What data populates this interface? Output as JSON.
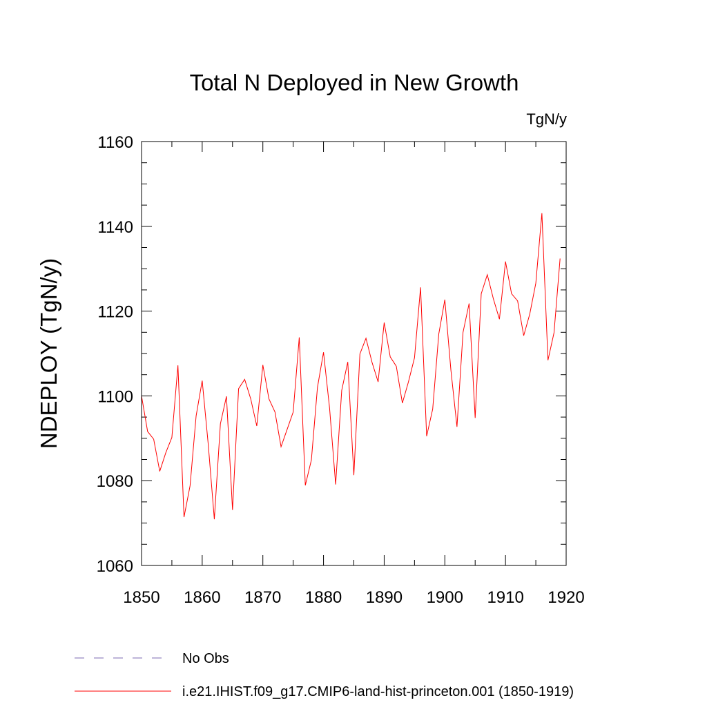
{
  "chart_data": {
    "type": "line",
    "title": "Total N Deployed in New Growth",
    "units": "TgN/y",
    "ylabel": "NDEPLOY  (TgN/y)",
    "xlabel": "",
    "xlim": [
      1850,
      1920
    ],
    "ylim": [
      1060,
      1160
    ],
    "x_ticks": [
      "1850",
      "1860",
      "1870",
      "1880",
      "1890",
      "1900",
      "1910",
      "1920"
    ],
    "y_ticks": [
      "1060",
      "1080",
      "1100",
      "1120",
      "1140",
      "1160"
    ],
    "grid": false,
    "legend_position": "bottom-left",
    "series": [
      {
        "name": "No Obs",
        "color": "#7b68b0",
        "style": "dashed",
        "x": [],
        "values": []
      },
      {
        "name": "i.e21.IHIST.f09_g17.CMIP6-land-hist-princeton.001 (1850-1919)",
        "color": "#ff0000",
        "style": "solid",
        "x": [
          1850,
          1851,
          1852,
          1853,
          1854,
          1855,
          1856,
          1857,
          1858,
          1859,
          1860,
          1861,
          1862,
          1863,
          1864,
          1865,
          1866,
          1867,
          1868,
          1869,
          1870,
          1871,
          1872,
          1873,
          1874,
          1875,
          1876,
          1877,
          1878,
          1879,
          1880,
          1881,
          1882,
          1883,
          1884,
          1885,
          1886,
          1887,
          1888,
          1889,
          1890,
          1891,
          1892,
          1893,
          1894,
          1895,
          1896,
          1897,
          1898,
          1899,
          1900,
          1901,
          1902,
          1903,
          1904,
          1905,
          1906,
          1907,
          1908,
          1909,
          1910,
          1911,
          1912,
          1913,
          1914,
          1915,
          1916,
          1917,
          1918,
          1919
        ],
        "values": [
          1100.0,
          1091.6,
          1089.8,
          1082.2,
          1086.6,
          1090.2,
          1107.2,
          1071.4,
          1078.8,
          1095.3,
          1103.6,
          1088.5,
          1070.9,
          1093.4,
          1099.9,
          1073.1,
          1101.7,
          1103.9,
          1099.3,
          1092.9,
          1107.3,
          1099.3,
          1096.2,
          1088.0,
          1092.1,
          1096.2,
          1113.8,
          1078.9,
          1084.9,
          1102.0,
          1110.3,
          1097.1,
          1079.1,
          1101.3,
          1108.0,
          1081.3,
          1109.9,
          1113.6,
          1107.9,
          1103.3,
          1117.3,
          1109.2,
          1107.0,
          1098.3,
          1103.3,
          1109.0,
          1125.6,
          1090.5,
          1096.9,
          1114.6,
          1122.7,
          1106.1,
          1092.7,
          1115.0,
          1121.8,
          1094.8,
          1124.1,
          1128.6,
          1122.9,
          1118.1,
          1131.7,
          1124.1,
          1122.4,
          1114.2,
          1119.3,
          1126.6,
          1143.1,
          1108.4,
          1114.9,
          1132.4
        ]
      }
    ]
  }
}
